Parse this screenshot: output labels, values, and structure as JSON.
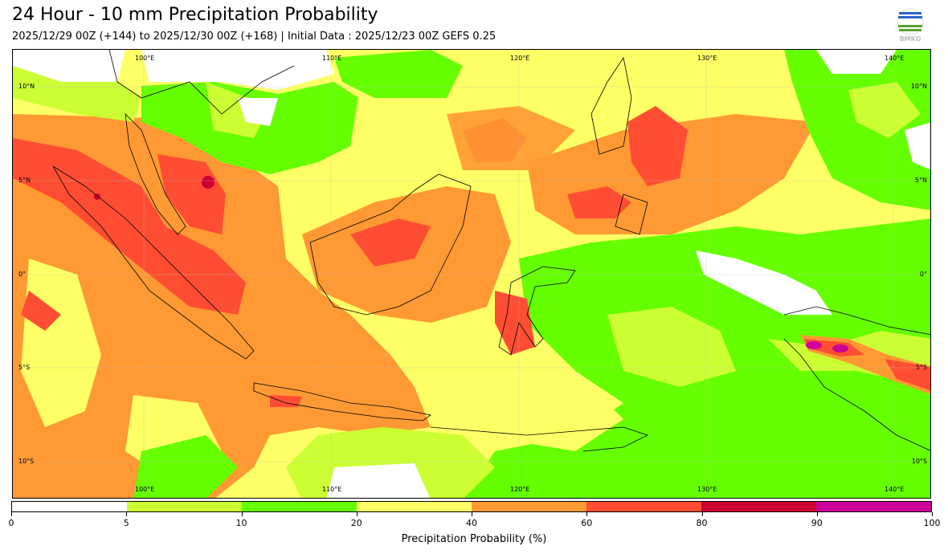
{
  "header": {
    "title": "24 Hour - 10 mm Precipitation Probability",
    "subtitle": "2025/12/29 00Z (+144) to 2025/12/30 00Z (+168) | Initial Data : 2025/12/23 00Z GEFS 0.25",
    "logo_text": "BMKG"
  },
  "map": {
    "lon_labels_top": [
      "100°E",
      "110°E",
      "120°E",
      "130°E",
      "140°E"
    ],
    "lon_labels_bottom": [
      "100°E",
      "110°E",
      "120°E",
      "130°E",
      "140°E"
    ],
    "lat_labels_left": [
      "10°N",
      "5°N",
      "0°",
      "5°S",
      "10°S"
    ],
    "lat_labels_right": [
      "10°N",
      "5°N",
      "0°",
      "5°S",
      "10°S"
    ]
  },
  "colorbar": {
    "label": "Precipitation Probability (%)",
    "ticks": [
      "0",
      "5",
      "10",
      "20",
      "40",
      "60",
      "80",
      "90",
      "100"
    ],
    "colors": [
      "#ffffff",
      "#ccff33",
      "#66ff00",
      "#ffff66",
      "#ff9933",
      "#ff4d33",
      "#cc0033",
      "#cc0099"
    ]
  }
}
